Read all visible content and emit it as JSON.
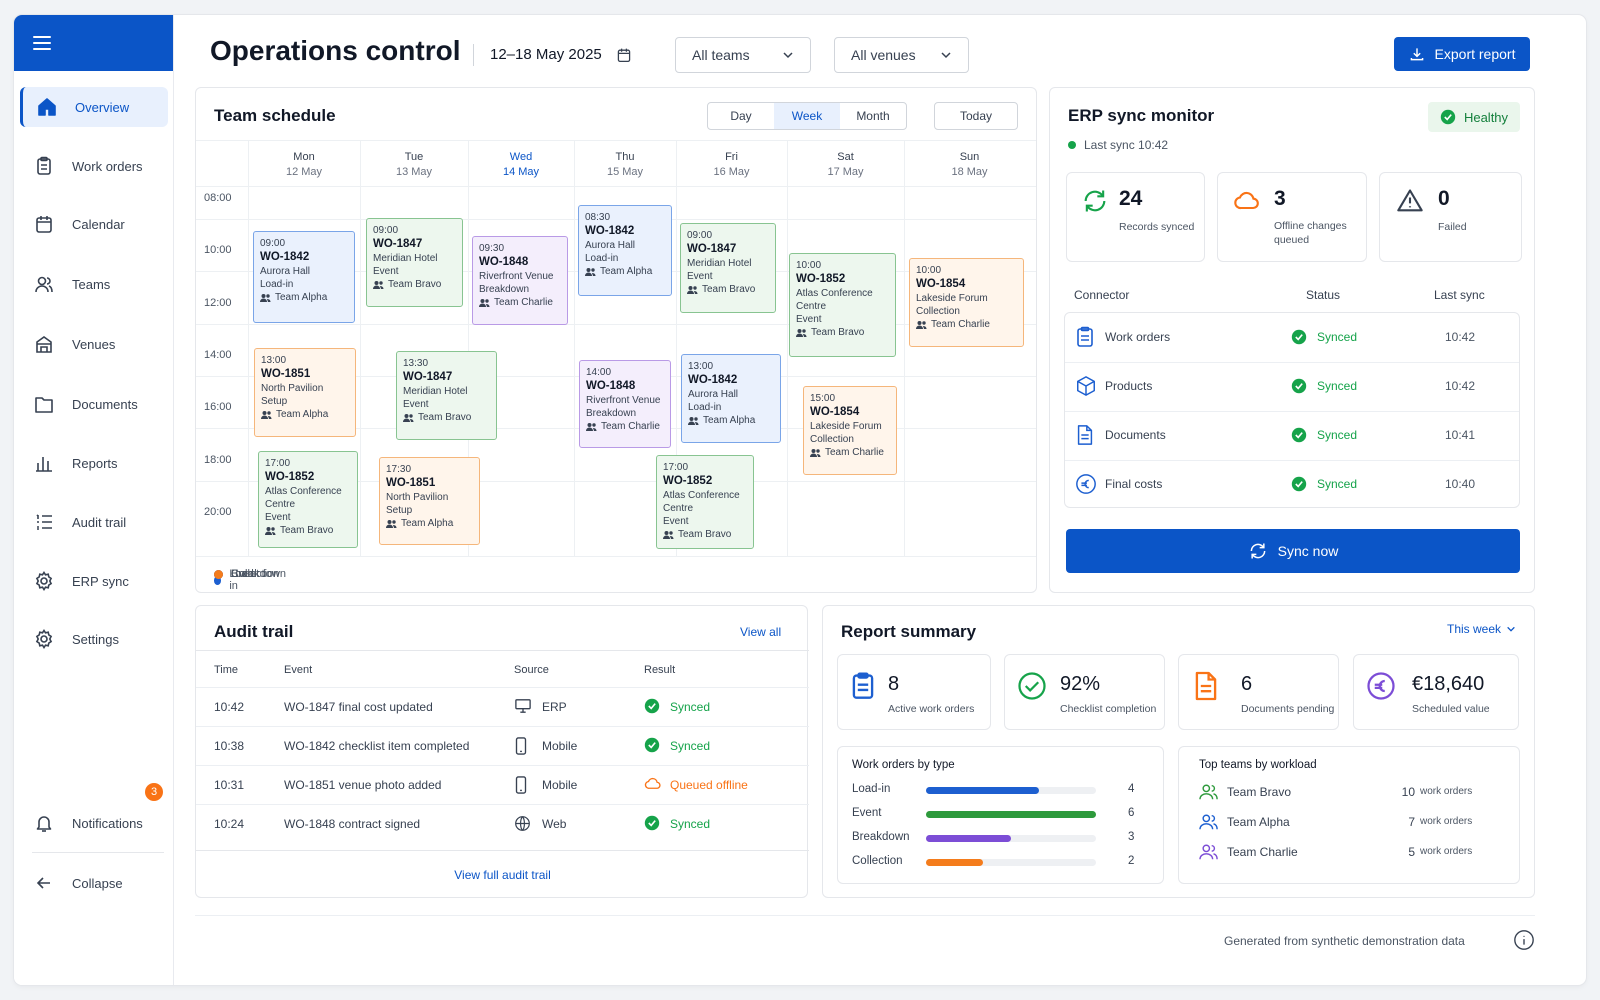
{
  "app": {
    "title": "Operations control",
    "date_range": "12–18 May 2025",
    "export_label": "Export report"
  },
  "filters": {
    "team": "All teams",
    "venue": "All venues"
  },
  "sidebar": {
    "items": [
      {
        "label": "Overview",
        "icon": "home-icon"
      },
      {
        "label": "Work orders",
        "icon": "clipboard-icon"
      },
      {
        "label": "Calendar",
        "icon": "calendar-icon"
      },
      {
        "label": "Teams",
        "icon": "users-icon"
      },
      {
        "label": "Venues",
        "icon": "building-icon"
      },
      {
        "label": "Documents",
        "icon": "folder-icon"
      },
      {
        "label": "Reports",
        "icon": "bar-chart-icon"
      },
      {
        "label": "Audit trail",
        "icon": "list-icon"
      },
      {
        "label": "ERP sync",
        "icon": "gear-icon"
      },
      {
        "label": "Settings",
        "icon": "gear-icon"
      }
    ],
    "notifications": {
      "label": "Notifications",
      "count": "3"
    },
    "collapse_label": "Collapse"
  },
  "schedule": {
    "title": "Team schedule",
    "views": [
      "Day",
      "Week",
      "Month"
    ],
    "active_view": "Week",
    "today_label": "Today",
    "days": [
      {
        "name": "Mon",
        "date": "12 May"
      },
      {
        "name": "Tue",
        "date": "13 May"
      },
      {
        "name": "Wed",
        "date": "14 May"
      },
      {
        "name": "Thu",
        "date": "15 May"
      },
      {
        "name": "Fri",
        "date": "16 May"
      },
      {
        "name": "Sat",
        "date": "17 May"
      },
      {
        "name": "Sun",
        "date": "18 May"
      }
    ],
    "hours": [
      "08:00",
      "10:00",
      "12:00",
      "14:00",
      "16:00",
      "18:00",
      "20:00"
    ],
    "events": [
      {
        "time": "09:00",
        "id": "WO-1842",
        "venue": "Aurora Hall",
        "type": "Load-in",
        "team": "Team Alpha",
        "color": "blue"
      },
      {
        "time": "09:00",
        "id": "WO-1847",
        "venue": "Meridian Hotel",
        "type": "Event",
        "team": "Team Bravo",
        "color": "green"
      },
      {
        "time": "09:30",
        "id": "WO-1848",
        "venue": "Riverfront Venue",
        "type": "Breakdown",
        "team": "Team Charlie",
        "color": "purple"
      },
      {
        "time": "08:30",
        "id": "WO-1842",
        "venue": "Aurora Hall",
        "type": "Load-in",
        "team": "Team Alpha",
        "color": "blue"
      },
      {
        "time": "09:00",
        "id": "WO-1847",
        "venue": "Meridian Hotel",
        "type": "Event",
        "team": "Team Bravo",
        "color": "green"
      },
      {
        "time": "10:00",
        "id": "WO-1852",
        "venue": "Atlas Conference Centre",
        "type": "Event",
        "team": "Team Bravo",
        "color": "green"
      },
      {
        "time": "10:00",
        "id": "WO-1854",
        "venue": "Lakeside Forum",
        "type": "Collection",
        "team": "Team Charlie",
        "color": "orange"
      },
      {
        "time": "13:00",
        "id": "WO-1851",
        "venue": "North Pavilion",
        "type": "Setup",
        "team": "Team Alpha",
        "color": "orange"
      },
      {
        "time": "13:30",
        "id": "WO-1847",
        "venue": "Meridian Hotel",
        "type": "Event",
        "team": "Team Bravo",
        "color": "green"
      },
      {
        "time": "14:00",
        "id": "WO-1848",
        "venue": "Riverfront Venue",
        "type": "Breakdown",
        "team": "Team Charlie",
        "color": "purple"
      },
      {
        "time": "13:00",
        "id": "WO-1842",
        "venue": "Aurora Hall",
        "type": "Load-in",
        "team": "Team Alpha",
        "color": "blue"
      },
      {
        "time": "15:00",
        "id": "WO-1854",
        "venue": "Lakeside Forum",
        "type": "Collection",
        "team": "Team Charlie",
        "color": "orange"
      },
      {
        "time": "17:00",
        "id": "WO-1852",
        "venue": "Atlas Conference Centre",
        "type": "Event",
        "team": "Team Bravo",
        "color": "green"
      },
      {
        "time": "17:30",
        "id": "WO-1851",
        "venue": "North Pavilion",
        "type": "Setup",
        "team": "Team Alpha",
        "color": "orange"
      },
      {
        "time": "17:00",
        "id": "WO-1852",
        "venue": "Atlas Conference Centre",
        "type": "Event",
        "team": "Team Bravo",
        "color": "green"
      }
    ],
    "legend": [
      {
        "label": "Load-in",
        "color": "#1d5fd0"
      },
      {
        "label": "Event",
        "color": "#2e9a3c"
      },
      {
        "label": "Breakdown",
        "color": "#7c4dd6"
      },
      {
        "label": "Collection",
        "color": "#f47c1c"
      }
    ]
  },
  "erp": {
    "title": "ERP sync monitor",
    "status": "Healthy",
    "last_sync": "Last sync 10:42",
    "stats": [
      {
        "value": "24",
        "label": "Records synced"
      },
      {
        "value": "3",
        "label": "Offline changes queued"
      },
      {
        "value": "0",
        "label": "Failed"
      }
    ],
    "columns": [
      "Connector",
      "Status",
      "Last sync"
    ],
    "connectors": [
      {
        "name": "Work orders",
        "status": "Synced",
        "time": "10:42"
      },
      {
        "name": "Products",
        "status": "Synced",
        "time": "10:42"
      },
      {
        "name": "Documents",
        "status": "Synced",
        "time": "10:41"
      },
      {
        "name": "Final costs",
        "status": "Synced",
        "time": "10:40"
      }
    ],
    "sync_label": "Sync now"
  },
  "audit": {
    "title": "Audit trail",
    "view_all": "View all",
    "columns": [
      "Time",
      "Event",
      "Source",
      "Result"
    ],
    "rows": [
      {
        "time": "10:42",
        "event": "WO-1847 final cost updated",
        "source": "ERP",
        "result": "Synced"
      },
      {
        "time": "10:38",
        "event": "WO-1842 checklist item completed",
        "source": "Mobile",
        "result": "Synced"
      },
      {
        "time": "10:31",
        "event": "WO-1851 venue photo added",
        "source": "Mobile",
        "result": "Queued offline"
      },
      {
        "time": "10:24",
        "event": "WO-1848 contract signed",
        "source": "Web",
        "result": "Synced"
      }
    ],
    "full_link": "View full audit trail"
  },
  "report": {
    "title": "Report summary",
    "period": "This week",
    "kpis": [
      {
        "value": "8",
        "label": "Active work orders"
      },
      {
        "value": "92%",
        "label": "Checklist completion"
      },
      {
        "value": "6",
        "label": "Documents pending"
      },
      {
        "value": "€18,640",
        "label": "Scheduled value"
      }
    ],
    "by_type_title": "Work orders by type",
    "by_type": [
      {
        "label": "Load-in",
        "value": 4,
        "color": "#1d5fd0"
      },
      {
        "label": "Event",
        "value": 6,
        "color": "#2e9a3c"
      },
      {
        "label": "Breakdown",
        "value": 3,
        "color": "#7c4dd6"
      },
      {
        "label": "Collection",
        "value": 2,
        "color": "#f47c1c"
      }
    ],
    "by_type_max": 6,
    "top_teams_title": "Top teams by workload",
    "teams": [
      {
        "name": "Team Bravo",
        "count": "10",
        "unit": "work orders",
        "color": "#2e9a3c"
      },
      {
        "name": "Team Alpha",
        "count": "7",
        "unit": "work orders",
        "color": "#1d5fd0"
      },
      {
        "name": "Team Charlie",
        "count": "5",
        "unit": "work orders",
        "color": "#7c4dd6"
      }
    ]
  },
  "footer": {
    "note": "Generated from synthetic demonstration data"
  }
}
